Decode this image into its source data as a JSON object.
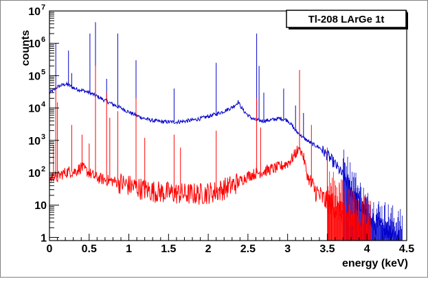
{
  "chart_data": {
    "type": "line",
    "title": "Tl-208 LArGe 1t",
    "xlabel": "energy (keV)",
    "ylabel": "counts",
    "xlim": [
      0,
      4.5
    ],
    "ylim": [
      0.8,
      10000000
    ],
    "yscale": "log",
    "grid": false,
    "legend": "top-right",
    "x_ticks": [
      {
        "value": 0,
        "label": "0"
      },
      {
        "value": 0.5,
        "label": "0.5"
      },
      {
        "value": 1,
        "label": "1"
      },
      {
        "value": 1.5,
        "label": "1.5"
      },
      {
        "value": 2,
        "label": "2"
      },
      {
        "value": 2.5,
        "label": "2.5"
      },
      {
        "value": 3,
        "label": "3"
      },
      {
        "value": 3.5,
        "label": "3.5"
      },
      {
        "value": 4,
        "label": "4"
      },
      {
        "value": 4.5,
        "label": "4.5"
      }
    ],
    "y_ticks": [
      {
        "value": 1,
        "label": "1",
        "exp": ""
      },
      {
        "value": 10,
        "label": "10",
        "exp": ""
      },
      {
        "value": 100,
        "label": "10",
        "exp": "2"
      },
      {
        "value": 1000,
        "label": "10",
        "exp": "3"
      },
      {
        "value": 10000,
        "label": "10",
        "exp": "4"
      },
      {
        "value": 100000,
        "label": "10",
        "exp": "5"
      },
      {
        "value": 1000000,
        "label": "10",
        "exp": "6"
      },
      {
        "value": 10000000,
        "label": "10",
        "exp": "7"
      }
    ],
    "series": [
      {
        "color": "#0000cc",
        "continuum": [
          [
            0.0,
            30000
          ],
          [
            0.05,
            35000
          ],
          [
            0.1,
            45000
          ],
          [
            0.15,
            50000
          ],
          [
            0.2,
            55000
          ],
          [
            0.25,
            50000
          ],
          [
            0.3,
            42000
          ],
          [
            0.35,
            38000
          ],
          [
            0.4,
            36000
          ],
          [
            0.45,
            33000
          ],
          [
            0.5,
            30000
          ],
          [
            0.6,
            23000
          ],
          [
            0.7,
            17000
          ],
          [
            0.8,
            13000
          ],
          [
            0.9,
            10000
          ],
          [
            1.0,
            7500
          ],
          [
            1.1,
            5800
          ],
          [
            1.2,
            4700
          ],
          [
            1.3,
            4100
          ],
          [
            1.4,
            3800
          ],
          [
            1.5,
            3700
          ],
          [
            1.6,
            3700
          ],
          [
            1.7,
            3900
          ],
          [
            1.8,
            4200
          ],
          [
            1.9,
            4700
          ],
          [
            2.0,
            5500
          ],
          [
            2.1,
            6500
          ],
          [
            2.2,
            8000
          ],
          [
            2.3,
            10500
          ],
          [
            2.35,
            13000
          ],
          [
            2.38,
            16000
          ],
          [
            2.4,
            12000
          ],
          [
            2.45,
            8000
          ],
          [
            2.5,
            6000
          ],
          [
            2.55,
            4800
          ],
          [
            2.6,
            4200
          ],
          [
            2.7,
            4000
          ],
          [
            2.8,
            4300
          ],
          [
            2.9,
            4800
          ],
          [
            3.0,
            4200
          ],
          [
            3.05,
            3000
          ],
          [
            3.1,
            2000
          ],
          [
            3.2,
            1200
          ],
          [
            3.3,
            800
          ],
          [
            3.4,
            600
          ],
          [
            3.5,
            350
          ],
          [
            3.6,
            180
          ],
          [
            3.7,
            80
          ],
          [
            3.8,
            30
          ],
          [
            3.9,
            10
          ],
          [
            4.0,
            4
          ],
          [
            4.1,
            2.5
          ],
          [
            4.2,
            2
          ],
          [
            4.3,
            1.5
          ],
          [
            4.4,
            1
          ]
        ],
        "peaks": [
          [
            0.08,
            1000000
          ],
          [
            0.24,
            600000
          ],
          [
            0.28,
            120000
          ],
          [
            0.51,
            2000000
          ],
          [
            0.58,
            4500000
          ],
          [
            0.72,
            80000
          ],
          [
            0.86,
            2000000
          ],
          [
            1.09,
            300000
          ],
          [
            1.57,
            40000
          ],
          [
            2.1,
            250000
          ],
          [
            2.61,
            2000000
          ],
          [
            2.64,
            200000
          ],
          [
            2.7,
            30000
          ],
          [
            2.95,
            40000
          ],
          [
            3.1,
            12000
          ],
          [
            3.2,
            7000
          ]
        ]
      },
      {
        "color": "#ff0000",
        "continuum": [
          [
            0.0,
            60
          ],
          [
            0.05,
            80
          ],
          [
            0.1,
            70
          ],
          [
            0.15,
            90
          ],
          [
            0.2,
            100
          ],
          [
            0.25,
            110
          ],
          [
            0.3,
            105
          ],
          [
            0.35,
            120
          ],
          [
            0.4,
            150
          ],
          [
            0.45,
            120
          ],
          [
            0.5,
            100
          ],
          [
            0.55,
            80
          ],
          [
            0.6,
            70
          ],
          [
            0.7,
            60
          ],
          [
            0.8,
            55
          ],
          [
            0.9,
            48
          ],
          [
            1.0,
            40
          ],
          [
            1.1,
            35
          ],
          [
            1.2,
            30
          ],
          [
            1.3,
            27
          ],
          [
            1.4,
            25
          ],
          [
            1.5,
            24
          ],
          [
            1.6,
            23
          ],
          [
            1.7,
            22
          ],
          [
            1.8,
            22
          ],
          [
            1.9,
            22
          ],
          [
            2.0,
            24
          ],
          [
            2.1,
            26
          ],
          [
            2.2,
            32
          ],
          [
            2.3,
            40
          ],
          [
            2.4,
            55
          ],
          [
            2.5,
            80
          ],
          [
            2.6,
            95
          ],
          [
            2.7,
            110
          ],
          [
            2.8,
            130
          ],
          [
            2.9,
            150
          ],
          [
            3.0,
            200
          ],
          [
            3.05,
            260
          ],
          [
            3.1,
            400
          ],
          [
            3.15,
            600
          ],
          [
            3.2,
            300
          ],
          [
            3.25,
            80
          ],
          [
            3.3,
            40
          ],
          [
            3.4,
            20
          ],
          [
            3.5,
            12
          ],
          [
            3.6,
            8
          ],
          [
            3.7,
            5
          ],
          [
            3.8,
            3
          ],
          [
            3.9,
            2
          ]
        ],
        "peaks": [
          [
            0.05,
            700
          ],
          [
            0.08,
            50000
          ],
          [
            0.1,
            15000
          ],
          [
            0.28,
            3000
          ],
          [
            0.41,
            1500
          ],
          [
            0.5,
            800
          ],
          [
            0.58,
            200000
          ],
          [
            0.72,
            30000
          ],
          [
            0.76,
            5000
          ],
          [
            0.86,
            8000
          ],
          [
            1.09,
            20000
          ],
          [
            1.2,
            1200
          ],
          [
            1.57,
            1500
          ],
          [
            1.65,
            600
          ],
          [
            2.1,
            2000
          ],
          [
            2.61,
            20000
          ],
          [
            2.66,
            2500
          ],
          [
            3.15,
            150000
          ],
          [
            3.3,
            3000
          ],
          [
            3.5,
            600
          ],
          [
            3.65,
            50
          ]
        ]
      }
    ]
  }
}
